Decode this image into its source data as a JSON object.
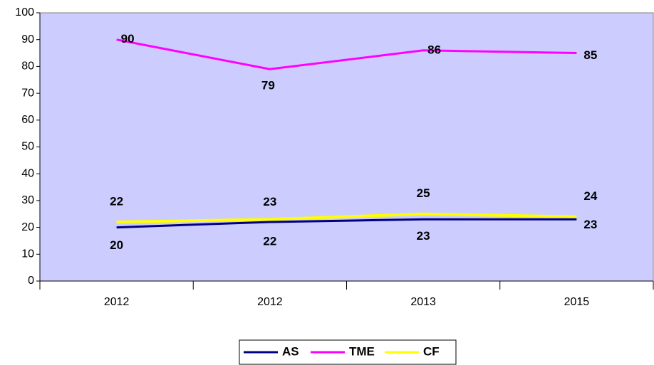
{
  "chart_data": {
    "type": "line",
    "categories": [
      "2012",
      "2012",
      "2013",
      "2015"
    ],
    "series": [
      {
        "name": "AS",
        "color": "#000080",
        "values": [
          20,
          22,
          23,
          23
        ]
      },
      {
        "name": "TME",
        "color": "#ff00ff",
        "values": [
          90,
          79,
          86,
          85
        ]
      },
      {
        "name": "CF",
        "color": "#ffff00",
        "values": [
          22,
          23,
          25,
          24
        ]
      }
    ],
    "ylim": [
      0,
      100
    ],
    "yticks": [
      0,
      10,
      20,
      30,
      40,
      50,
      60,
      70,
      80,
      90,
      100
    ],
    "plot_background": "#ccccff",
    "legend": "bottom"
  }
}
